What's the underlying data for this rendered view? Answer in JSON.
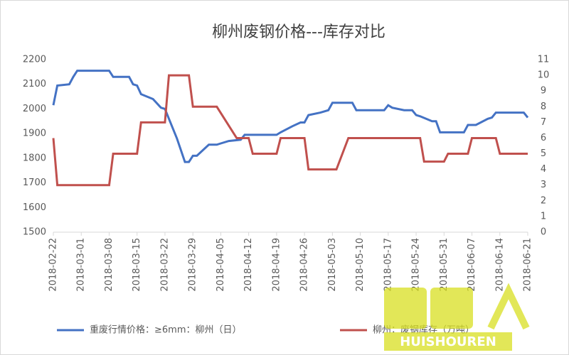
{
  "chart_data": {
    "type": "line",
    "title": "柳州废钢价格---库存对比",
    "xlim": [
      "2018-02-22",
      "2018-06-21"
    ],
    "xticks": [
      "2018-02-22",
      "2018-03-01",
      "2018-03-08",
      "2018-03-15",
      "2018-03-22",
      "2018-03-29",
      "2018-04-05",
      "2018-04-12",
      "2018-04-19",
      "2018-04-26",
      "2018-05-03",
      "2018-05-10",
      "2018-05-17",
      "2018-05-24",
      "2018-05-31",
      "2018-06-07",
      "2018-06-14",
      "2018-06-21"
    ],
    "ylim": [
      1500,
      2200
    ],
    "yticks": [
      1500,
      1600,
      1700,
      1800,
      1900,
      2000,
      2100,
      2200
    ],
    "y2lim": [
      0,
      11
    ],
    "y2ticks": [
      0,
      1,
      2,
      3,
      4,
      5,
      6,
      7,
      8,
      9,
      10,
      11
    ],
    "series": [
      {
        "name": "重废行情价格：≥6mm：柳州（日）",
        "color": "#4472c4",
        "x": [
          "2018-02-22",
          "2018-02-23",
          "2018-02-26",
          "2018-02-27",
          "2018-02-28",
          "2018-03-08",
          "2018-03-09",
          "2018-03-13",
          "2018-03-14",
          "2018-03-15",
          "2018-03-16",
          "2018-03-19",
          "2018-03-21",
          "2018-03-22",
          "2018-03-23",
          "2018-03-25",
          "2018-03-27",
          "2018-03-28",
          "2018-03-29",
          "2018-03-30",
          "2018-04-02",
          "2018-04-04",
          "2018-04-05",
          "2018-04-07",
          "2018-04-10",
          "2018-04-11",
          "2018-04-19",
          "2018-04-20",
          "2018-04-23",
          "2018-04-25",
          "2018-04-26",
          "2018-04-27",
          "2018-04-30",
          "2018-05-02",
          "2018-05-03",
          "2018-05-08",
          "2018-05-09",
          "2018-05-16",
          "2018-05-17",
          "2018-05-18",
          "2018-05-21",
          "2018-05-23",
          "2018-05-24",
          "2018-05-25",
          "2018-05-28",
          "2018-05-29",
          "2018-05-30",
          "2018-06-05",
          "2018-06-06",
          "2018-06-08",
          "2018-06-11",
          "2018-06-12",
          "2018-06-13",
          "2018-06-20",
          "2018-06-21"
        ],
        "values": [
          2015,
          2095,
          2100,
          2130,
          2155,
          2155,
          2130,
          2130,
          2100,
          2095,
          2060,
          2040,
          2005,
          2000,
          1960,
          1880,
          1785,
          1785,
          1810,
          1810,
          1855,
          1855,
          1860,
          1870,
          1875,
          1895,
          1895,
          1905,
          1930,
          1945,
          1945,
          1975,
          1985,
          1995,
          2025,
          2025,
          1995,
          1995,
          2015,
          2005,
          1995,
          1995,
          1975,
          1970,
          1950,
          1950,
          1905,
          1905,
          1935,
          1935,
          1960,
          1965,
          1985,
          1985,
          1965
        ]
      },
      {
        "name": "柳州：废钢库存（万吨）",
        "color": "#c0504d",
        "axis": "y2",
        "x": [
          "2018-02-22",
          "2018-02-23",
          "2018-03-08",
          "2018-03-09",
          "2018-03-15",
          "2018-03-16",
          "2018-03-22",
          "2018-03-23",
          "2018-03-28",
          "2018-03-29",
          "2018-04-04",
          "2018-04-09",
          "2018-04-12",
          "2018-04-13",
          "2018-04-19",
          "2018-04-20",
          "2018-04-26",
          "2018-04-27",
          "2018-05-04",
          "2018-05-07",
          "2018-05-25",
          "2018-05-26",
          "2018-05-31",
          "2018-06-01",
          "2018-06-06",
          "2018-06-07",
          "2018-06-13",
          "2018-06-14",
          "2018-06-21"
        ],
        "values": [
          6,
          3,
          3,
          5,
          5,
          7,
          7,
          10,
          10,
          8,
          8,
          6,
          6,
          5,
          5,
          6,
          6,
          4,
          4,
          6,
          6,
          4.5,
          4.5,
          5,
          5,
          6,
          6,
          5,
          5
        ]
      }
    ],
    "watermark": "HUISHOUREN"
  }
}
